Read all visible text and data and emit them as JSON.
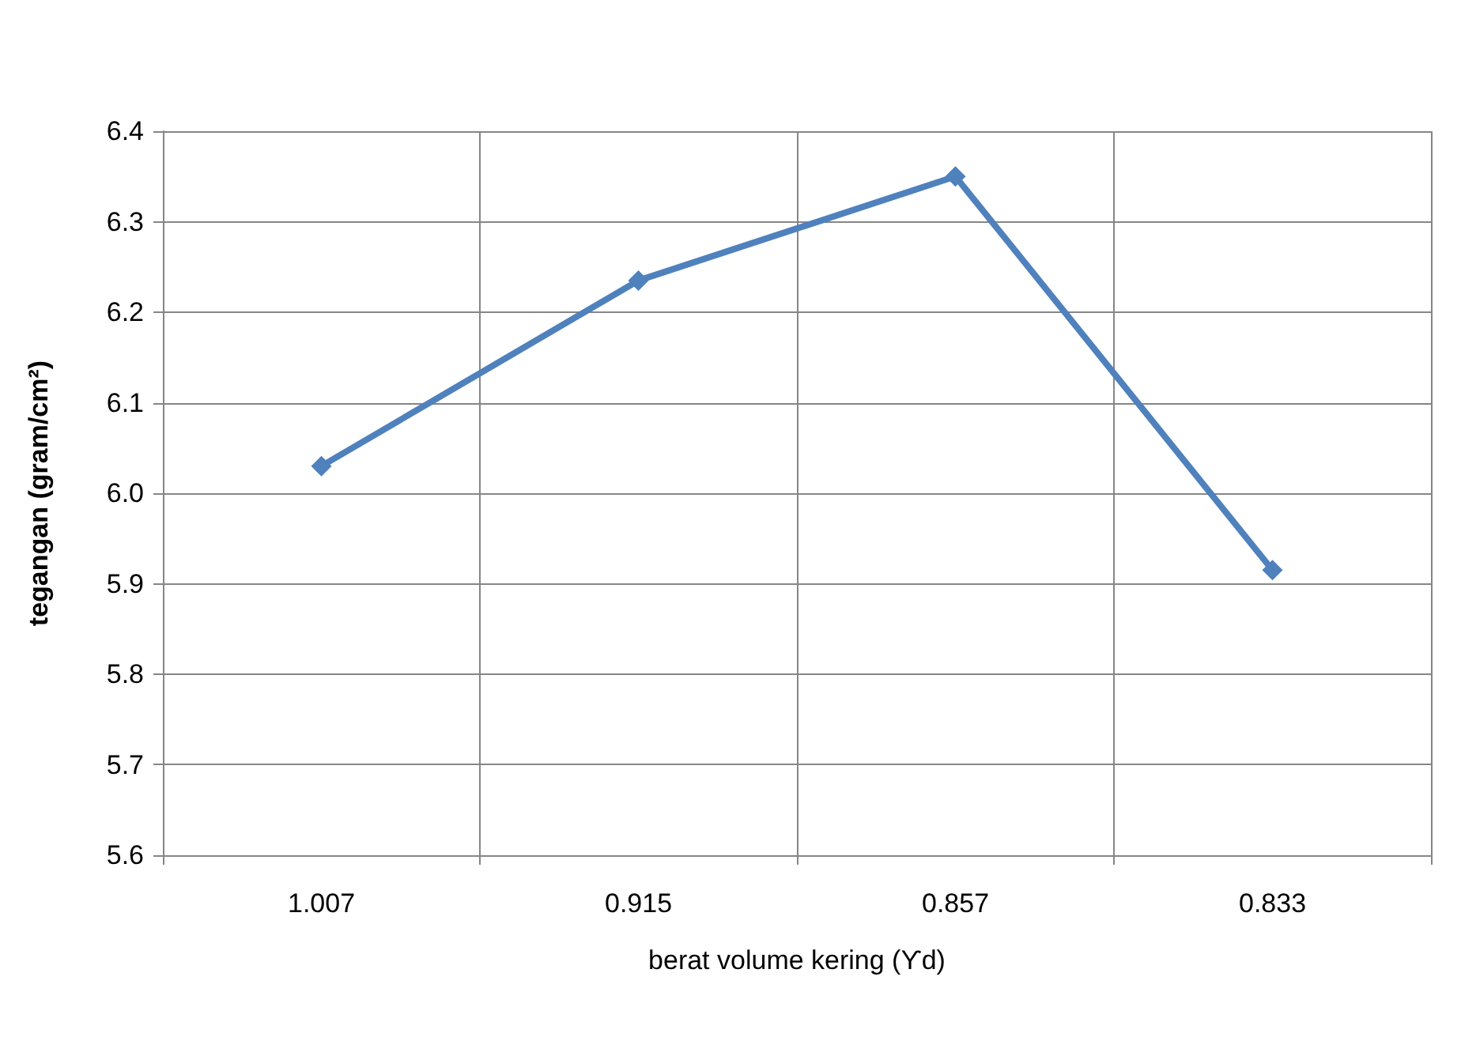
{
  "chart_data": {
    "type": "line",
    "xlabel": "berat volume kering (ϒd)",
    "ylabel": "tegangan (gram/cm²)",
    "categories": [
      "1.007",
      "0.915",
      "0.857",
      "0.833"
    ],
    "series": [
      {
        "color": "#4f81bd",
        "values": [
          6.03,
          6.235,
          6.35,
          5.915
        ]
      }
    ],
    "ylim": [
      5.6,
      6.4
    ],
    "yticks": [
      {
        "value": 5.6,
        "label": "5.6"
      },
      {
        "value": 5.7,
        "label": "5.7"
      },
      {
        "value": 5.8,
        "label": "5.8"
      },
      {
        "value": 5.9,
        "label": "5.9"
      },
      {
        "value": 6.0,
        "label": "6.0"
      },
      {
        "value": 6.1,
        "label": "6.1"
      },
      {
        "value": 6.2,
        "label": "6.2"
      },
      {
        "value": 6.3,
        "label": "6.3"
      },
      {
        "value": 6.4,
        "label": "6.4"
      }
    ],
    "grid": true,
    "marker": "diamond",
    "line_style": "solid"
  }
}
